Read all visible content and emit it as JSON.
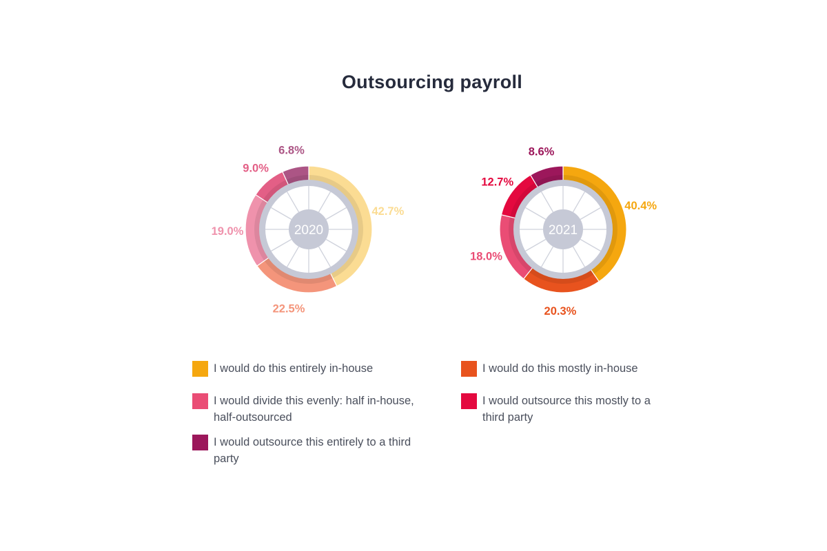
{
  "chart_data": {
    "type": "pie",
    "title": "Outsourcing payroll",
    "categories": [
      "I would do this entirely in-house",
      "I would do this mostly in-house",
      "I would divide this evenly: half in-house, half-outsourced",
      "I would outsource this mostly to a third party",
      "I would outsource this entirely to a third party"
    ],
    "colors": [
      "#f5a70f",
      "#e8531e",
      "#ea4d75",
      "#e4093f",
      "#9c175b"
    ],
    "colors_2020": [
      "#fbdc93",
      "#f4957b",
      "#ef92ac",
      "#e35f86",
      "#ac5585"
    ],
    "series": [
      {
        "name": "2020",
        "values": [
          42.7,
          22.5,
          19.0,
          9.0,
          6.8
        ],
        "labels": [
          "42.7%",
          "22.5%",
          "19.0%",
          "9.0%",
          "6.8%"
        ]
      },
      {
        "name": "2021",
        "values": [
          40.4,
          20.3,
          18.0,
          12.7,
          8.6
        ],
        "labels": [
          "40.4%",
          "20.3%",
          "18.0%",
          "12.7%",
          "8.6%"
        ]
      }
    ],
    "legend": [
      {
        "label": "I would do this entirely in-house",
        "color": "#f5a70f"
      },
      {
        "label": "I would do this mostly in-house",
        "color": "#e8531e"
      },
      {
        "label": "I would divide this evenly: half in-house, half-outsourced",
        "color": "#ea4d75"
      },
      {
        "label": "I would outsource this mostly to a third party",
        "color": "#e4093f"
      },
      {
        "label": "I would outsource this entirely to a third party",
        "color": "#9c175b"
      }
    ]
  }
}
